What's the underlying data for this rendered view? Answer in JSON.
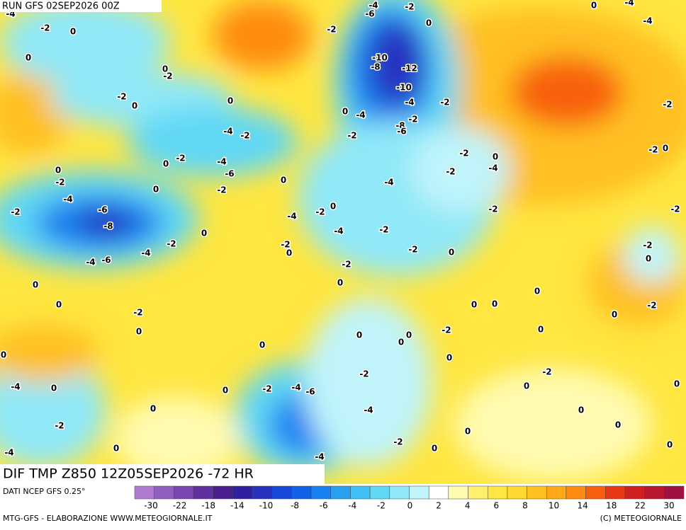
{
  "header": {
    "run": "RUN GFS 02SEP2026 00Z",
    "field": "DIF TMP Z850 12Z05SEP2026 -72 HR"
  },
  "contour_labels": [
    -4,
    -2,
    0,
    0,
    0,
    -2,
    -2,
    0,
    0,
    -2,
    -6,
    -4,
    -2,
    0,
    -10,
    -8,
    -12,
    -10,
    -4,
    0,
    -4,
    -2,
    -8,
    -6,
    -2,
    -4,
    -2,
    -2,
    0,
    -4,
    -6,
    -2,
    0,
    0,
    -2,
    -4,
    0,
    -2,
    -6,
    -8,
    0,
    -2,
    -4,
    -4,
    -6,
    -4,
    -2,
    0,
    -4,
    -2,
    -4,
    -2,
    0,
    -2,
    -4,
    -2,
    -2,
    0,
    -2,
    0,
    -2,
    0,
    0,
    0,
    -2,
    0,
    0,
    0,
    0,
    0,
    -2,
    -2,
    0,
    0,
    0,
    0,
    0,
    0,
    -2,
    -2,
    0,
    -4,
    0,
    0,
    -2,
    -4,
    -6,
    0,
    0,
    -4,
    0,
    0,
    -2,
    0,
    0,
    -2,
    0,
    0,
    -4,
    0,
    -4,
    0,
    -4,
    -4,
    -2,
    -2,
    0,
    -2,
    -2,
    0,
    -2,
    0
  ],
  "colorbar": {
    "colors": [
      "#b07ad0",
      "#9060c0",
      "#7a48b0",
      "#6030a0",
      "#4a2090",
      "#3020a0",
      "#2830c0",
      "#1848d8",
      "#1060e8",
      "#1880f0",
      "#28a0f0",
      "#40c0f5",
      "#60d8f5",
      "#90e8f8",
      "#c0f4fa",
      "#ffffff",
      "#fffbb0",
      "#fff070",
      "#ffe640",
      "#ffd830",
      "#ffc020",
      "#ffa818",
      "#ff8c10",
      "#f86010",
      "#e83818",
      "#d02020",
      "#b81830",
      "#a01040"
    ],
    "ticks": [
      -30,
      -22,
      -18,
      -14,
      -10,
      -8,
      -6,
      -4,
      -2,
      0,
      2,
      4,
      6,
      8,
      10,
      14,
      18,
      22,
      30
    ]
  },
  "footer": {
    "source": "DATI NCEP GFS 0.25°",
    "credit": "MTG-GFS - ELABORAZIONE WWW.METEOGIORNALE.IT",
    "copyright": "(C) METEOGIORNALE"
  }
}
